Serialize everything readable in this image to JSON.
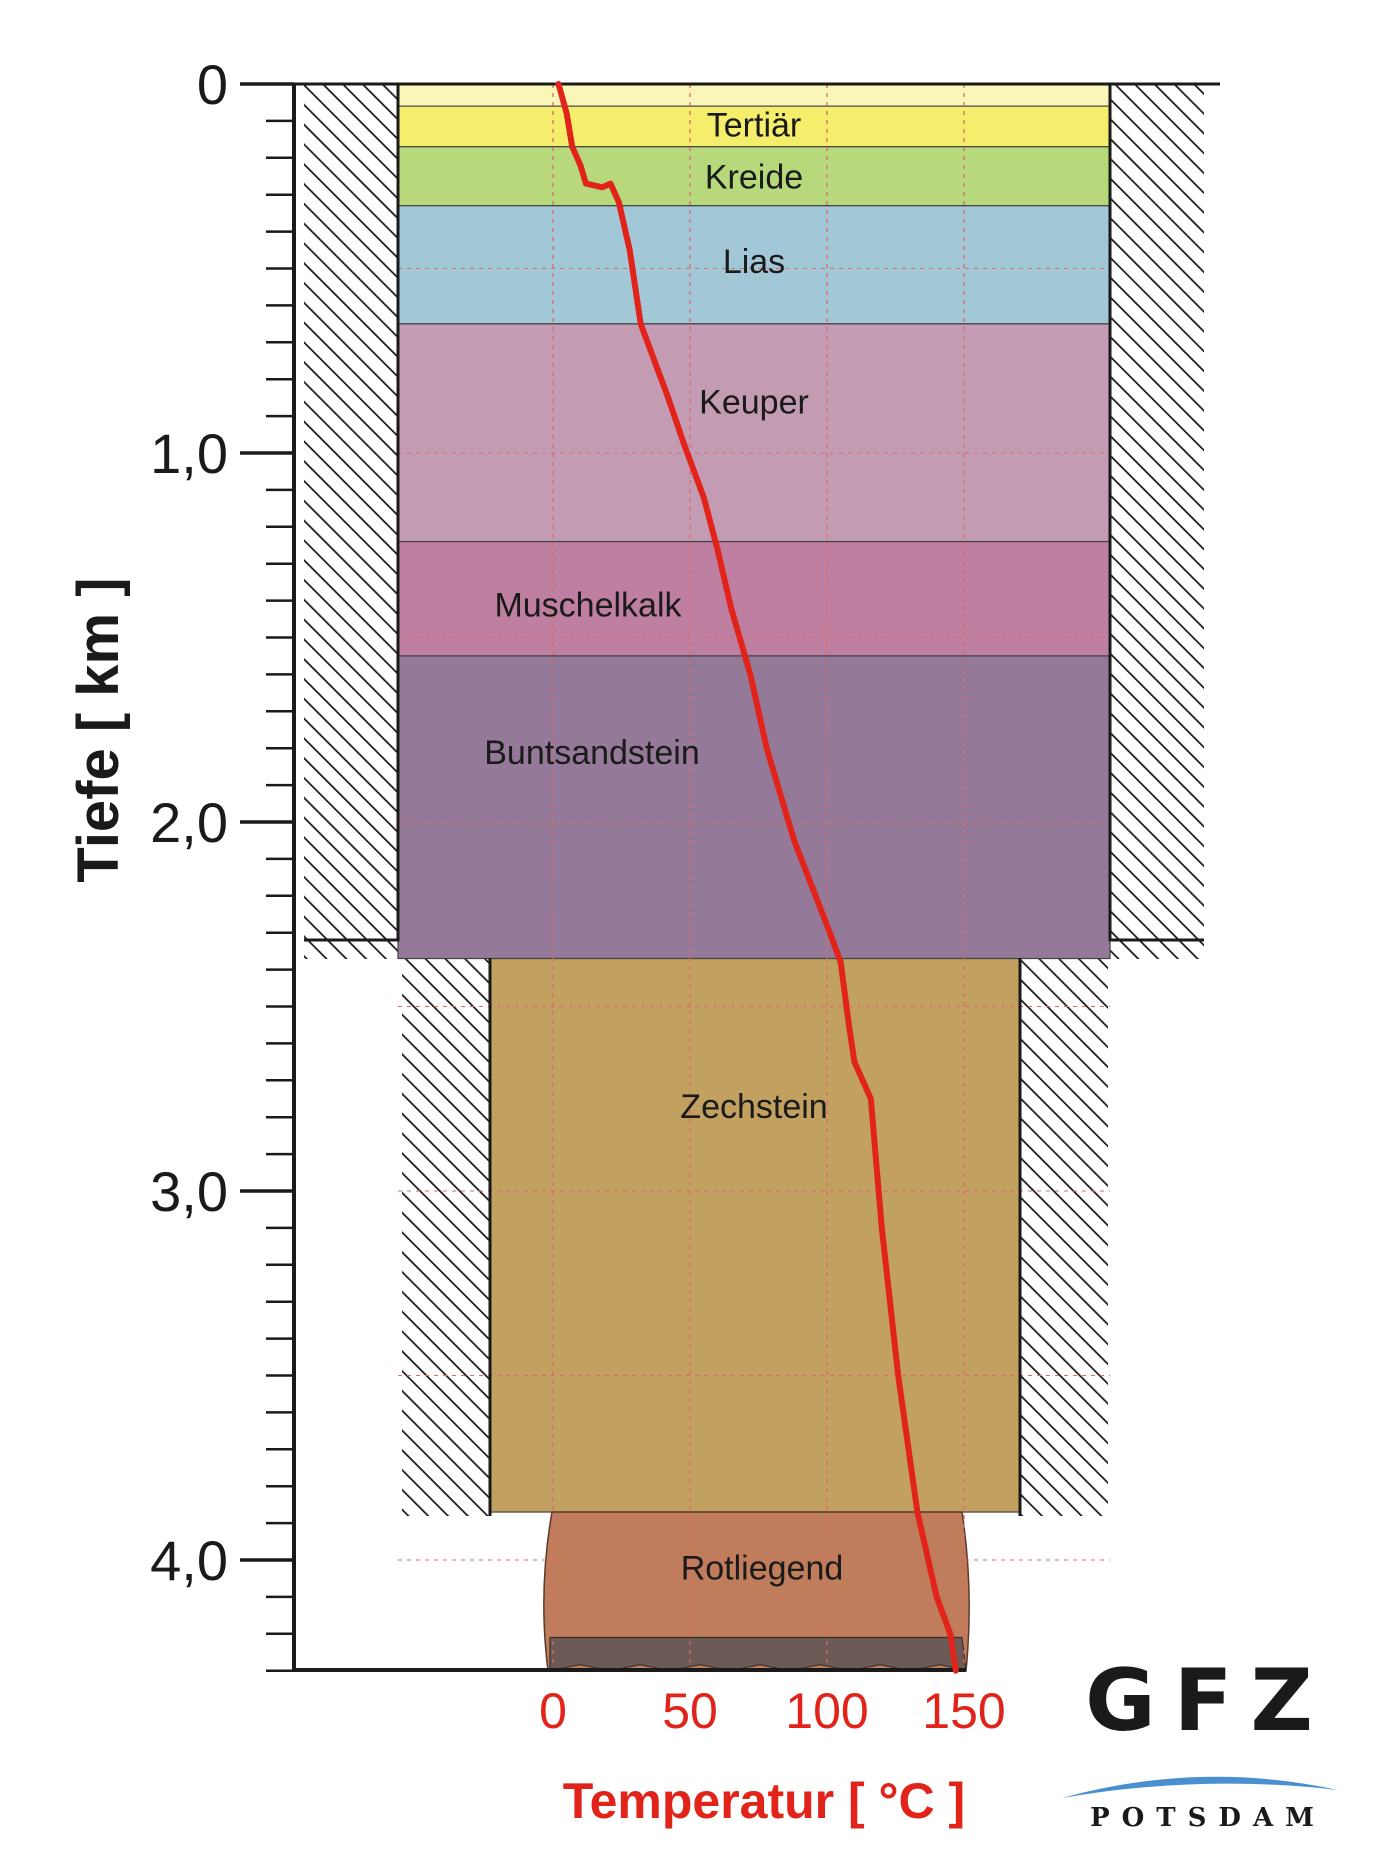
{
  "axes": {
    "depth_title": "Tiefe [ km ]",
    "temperature_title": "Temperatur [ °C ]",
    "depth_ticks": [
      {
        "value": 0,
        "label": "0"
      },
      {
        "value": 1.0,
        "label": "1,0"
      },
      {
        "value": 2.0,
        "label": "2,0"
      },
      {
        "value": 3.0,
        "label": "3,0"
      },
      {
        "value": 4.0,
        "label": "4,0"
      }
    ],
    "temperature_ticks": [
      {
        "value": 0,
        "label": "0"
      },
      {
        "value": 50,
        "label": "50"
      },
      {
        "value": 100,
        "label": "100"
      },
      {
        "value": 150,
        "label": "150"
      }
    ],
    "depth_range_km": [
      0,
      4.3
    ],
    "temperature_range_c": [
      0,
      150
    ]
  },
  "layers": [
    {
      "name": "Tertiär",
      "top_km": 0.06,
      "bottom_km": 0.17,
      "color": "#f4ee6c"
    },
    {
      "name": "Kreide",
      "top_km": 0.17,
      "bottom_km": 0.33,
      "color": "#b7d97b"
    },
    {
      "name": "Lias",
      "top_km": 0.33,
      "bottom_km": 0.65,
      "color": "#a2c8d8"
    },
    {
      "name": "Keuper",
      "top_km": 0.65,
      "bottom_km": 1.24,
      "color": "#c39cb3"
    },
    {
      "name": "Muschelkalk",
      "top_km": 1.24,
      "bottom_km": 1.55,
      "color": "#bf7fa0"
    },
    {
      "name": "Buntsandstein",
      "top_km": 1.55,
      "bottom_km": 2.37,
      "color": "#957999"
    },
    {
      "name": "Zechstein",
      "top_km": 2.37,
      "bottom_km": 3.87,
      "color": "#c2a060"
    },
    {
      "name": "Rotliegend",
      "top_km": 3.87,
      "bottom_km": 4.3,
      "color": "#c07d5b"
    }
  ],
  "temperature_profile": [
    {
      "t": 2,
      "z": 0.0
    },
    {
      "t": 5,
      "z": 0.08
    },
    {
      "t": 7,
      "z": 0.17
    },
    {
      "t": 10,
      "z": 0.22
    },
    {
      "t": 12,
      "z": 0.27
    },
    {
      "t": 18,
      "z": 0.28
    },
    {
      "t": 21,
      "z": 0.27
    },
    {
      "t": 24,
      "z": 0.32
    },
    {
      "t": 28,
      "z": 0.45
    },
    {
      "t": 32,
      "z": 0.65
    },
    {
      "t": 42,
      "z": 0.85
    },
    {
      "t": 48,
      "z": 0.98
    },
    {
      "t": 55,
      "z": 1.12
    },
    {
      "t": 60,
      "z": 1.26
    },
    {
      "t": 65,
      "z": 1.42
    },
    {
      "t": 72,
      "z": 1.6
    },
    {
      "t": 78,
      "z": 1.8
    },
    {
      "t": 88,
      "z": 2.05
    },
    {
      "t": 100,
      "z": 2.28
    },
    {
      "t": 105,
      "z": 2.38
    },
    {
      "t": 108,
      "z": 2.55
    },
    {
      "t": 110,
      "z": 2.65
    },
    {
      "t": 116,
      "z": 2.75
    },
    {
      "t": 120,
      "z": 3.1
    },
    {
      "t": 126,
      "z": 3.5
    },
    {
      "t": 133,
      "z": 3.87
    },
    {
      "t": 140,
      "z": 4.1
    },
    {
      "t": 145,
      "z": 4.2
    },
    {
      "t": 147,
      "z": 4.3
    }
  ],
  "logo": {
    "main": "GFZ",
    "sub": "POTSDAM"
  },
  "colors": {
    "temperature_curve": "#e2231a",
    "axis": "#1a1a1a"
  }
}
